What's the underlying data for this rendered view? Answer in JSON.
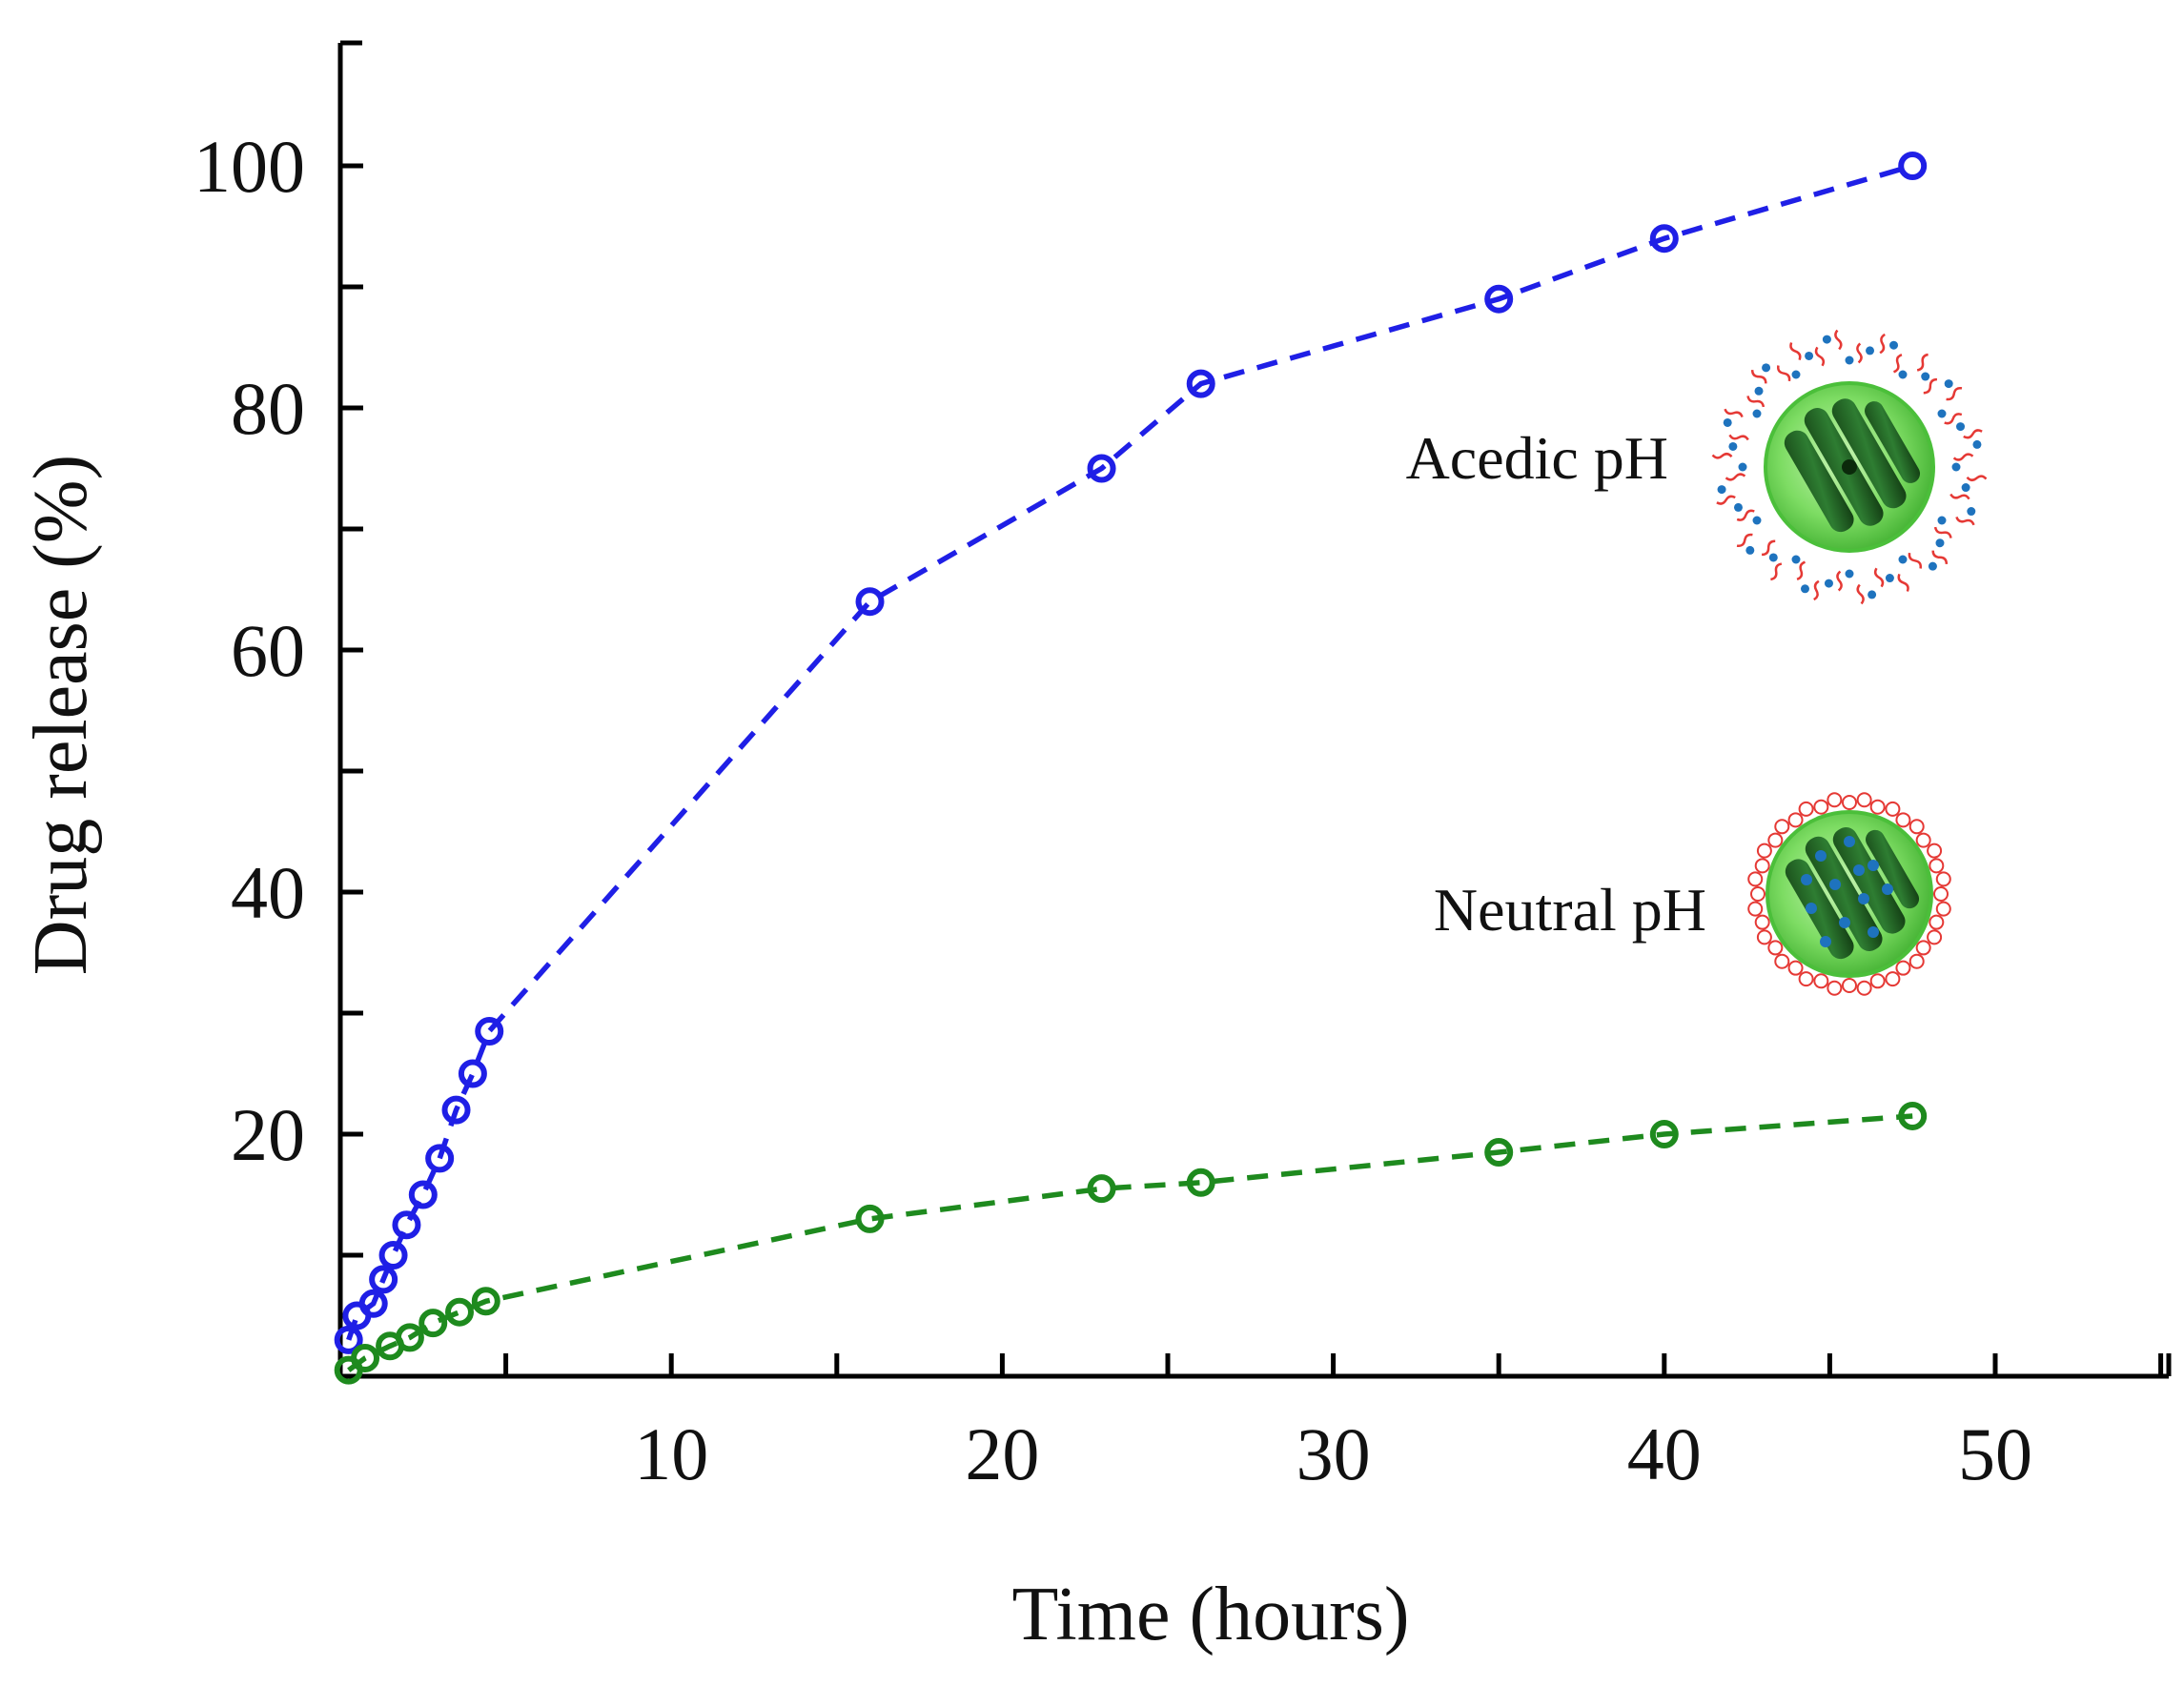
{
  "chart_data": {
    "type": "line",
    "title": "",
    "xlabel": "Time (hours)",
    "ylabel": "Drug release (%)",
    "xlim": [
      0,
      55
    ],
    "ylim": [
      0,
      110
    ],
    "xticks": [
      10,
      20,
      30,
      40,
      50
    ],
    "yticks": [
      20,
      40,
      60,
      80,
      100
    ],
    "grid": false,
    "legend": "none",
    "series": [
      {
        "name": "Acedic pH",
        "color": "#1f1fe6",
        "x": [
          0.25,
          0.5,
          1,
          1.3,
          1.6,
          2,
          2.5,
          3,
          3.5,
          4,
          4.5,
          16,
          23,
          26,
          35,
          40,
          47.5
        ],
        "y": [
          3,
          5,
          6,
          8,
          10,
          12.5,
          15,
          18,
          22,
          25,
          28.5,
          64,
          75,
          82,
          89,
          94,
          100
        ]
      },
      {
        "name": "Neutral pH",
        "color": "#1e8a1e",
        "x": [
          0.25,
          0.75,
          1.5,
          2.1,
          2.8,
          3.6,
          4.4,
          16,
          23,
          26,
          35,
          40,
          47.5
        ],
        "y": [
          0.5,
          1.5,
          2.5,
          3.2,
          4.4,
          5.3,
          6.2,
          13,
          15.5,
          16,
          18.5,
          20,
          21.5
        ]
      }
    ],
    "annotations": [
      {
        "text": "Acedic pH",
        "target_series": "Acedic pH",
        "icon": "micelle-acidic-icon"
      },
      {
        "text": "Neutral pH",
        "target_series": "Neutral pH",
        "icon": "micelle-neutral-icon"
      }
    ]
  }
}
